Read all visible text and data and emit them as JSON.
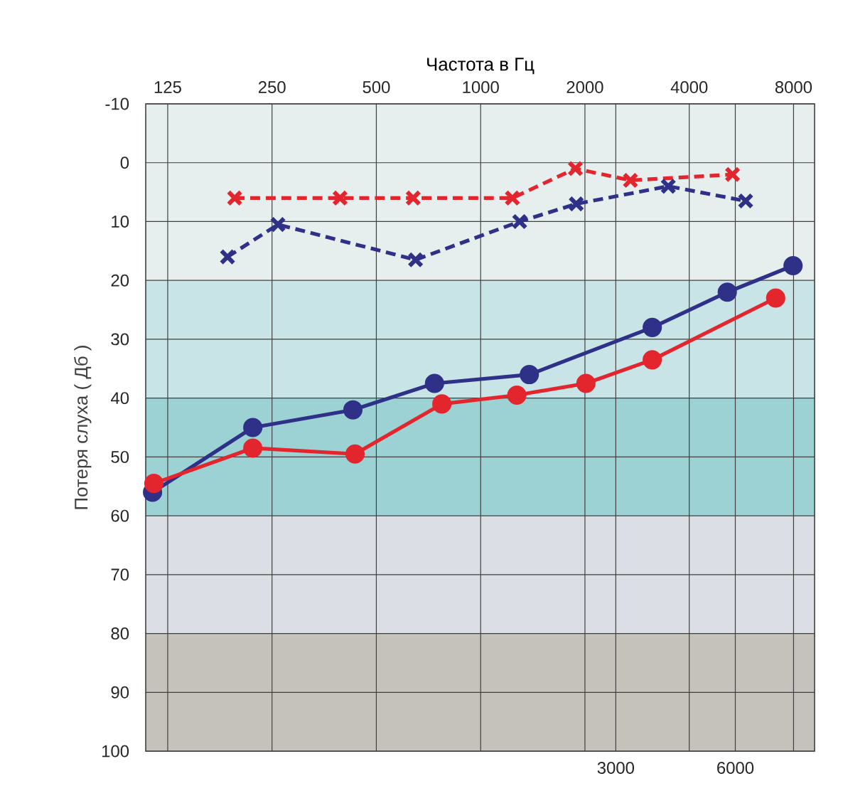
{
  "chart_data": {
    "type": "line",
    "xlabel": "Частота в Гц",
    "ylabel": "Потеря слуха ( Дб )",
    "log": "x",
    "grid": true,
    "xlim": [
      108,
      9200
    ],
    "x2lim": [
      -8800,
      7990
    ],
    "xticks": [
      125,
      250,
      500,
      1000,
      2000,
      4000,
      8000
    ],
    "x2ticks": [
      3000,
      6000
    ],
    "ylim": [
      100,
      -10
    ],
    "yticks": [
      -10,
      0,
      10,
      20,
      30,
      40,
      50,
      60,
      70,
      80,
      90,
      100
    ],
    "bands": [
      {
        "axis": "y",
        "from": -10,
        "to": 20,
        "color": "#e6eeee"
      },
      {
        "axis": "y",
        "from": 20,
        "to": 40,
        "color": "#c8e4e6"
      },
      {
        "axis": "y",
        "from": 40,
        "to": 60,
        "color": "#9cd2d4"
      },
      {
        "axis": "y",
        "from": 60,
        "to": 80,
        "color": "#dcdee6"
      },
      {
        "axis": "y",
        "from": 80,
        "to": 100,
        "color": "#c4c2ba"
      }
    ],
    "series": [
      {
        "color": "#e3262e",
        "marker": "cross",
        "line_style": "dashed",
        "x": [
          195,
          393,
          639,
          1235,
          1877,
          2706,
          5334
        ],
        "values": [
          6,
          6,
          6,
          6,
          1,
          3,
          2
        ]
      },
      {
        "color": "#2e3187",
        "marker": "cross",
        "line_style": "dashed",
        "x": [
          186,
          260,
          649,
          1296,
          1888,
          3480,
          5819
        ],
        "values": [
          16,
          10.5,
          16.5,
          10,
          7,
          4,
          6.5
        ]
      },
      {
        "color": "#2e3187",
        "marker": "circle",
        "line_style": "solid",
        "x": [
          113,
          220,
          428,
          736,
          1382,
          3128,
          5150,
          7974
        ],
        "values": [
          56,
          45,
          42,
          37.5,
          36,
          28,
          22,
          17.5
        ]
      },
      {
        "color": "#e3262e",
        "marker": "circle",
        "line_style": "solid",
        "x": [
          114,
          220,
          434,
          773,
          1272,
          2013,
          3128,
          7105
        ],
        "values": [
          54.5,
          48.5,
          49.5,
          41,
          39.5,
          37.5,
          33.5,
          23
        ]
      }
    ]
  }
}
